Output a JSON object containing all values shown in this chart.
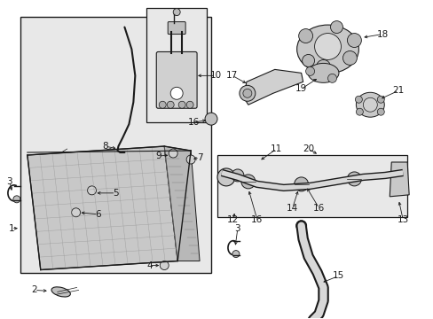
{
  "bg_color": "#ffffff",
  "line_color": "#1a1a1a",
  "gray_fill": "#d8d8d8",
  "box_fill": "#e8e8e8",
  "figsize": [
    4.89,
    3.6
  ],
  "dpi": 100
}
